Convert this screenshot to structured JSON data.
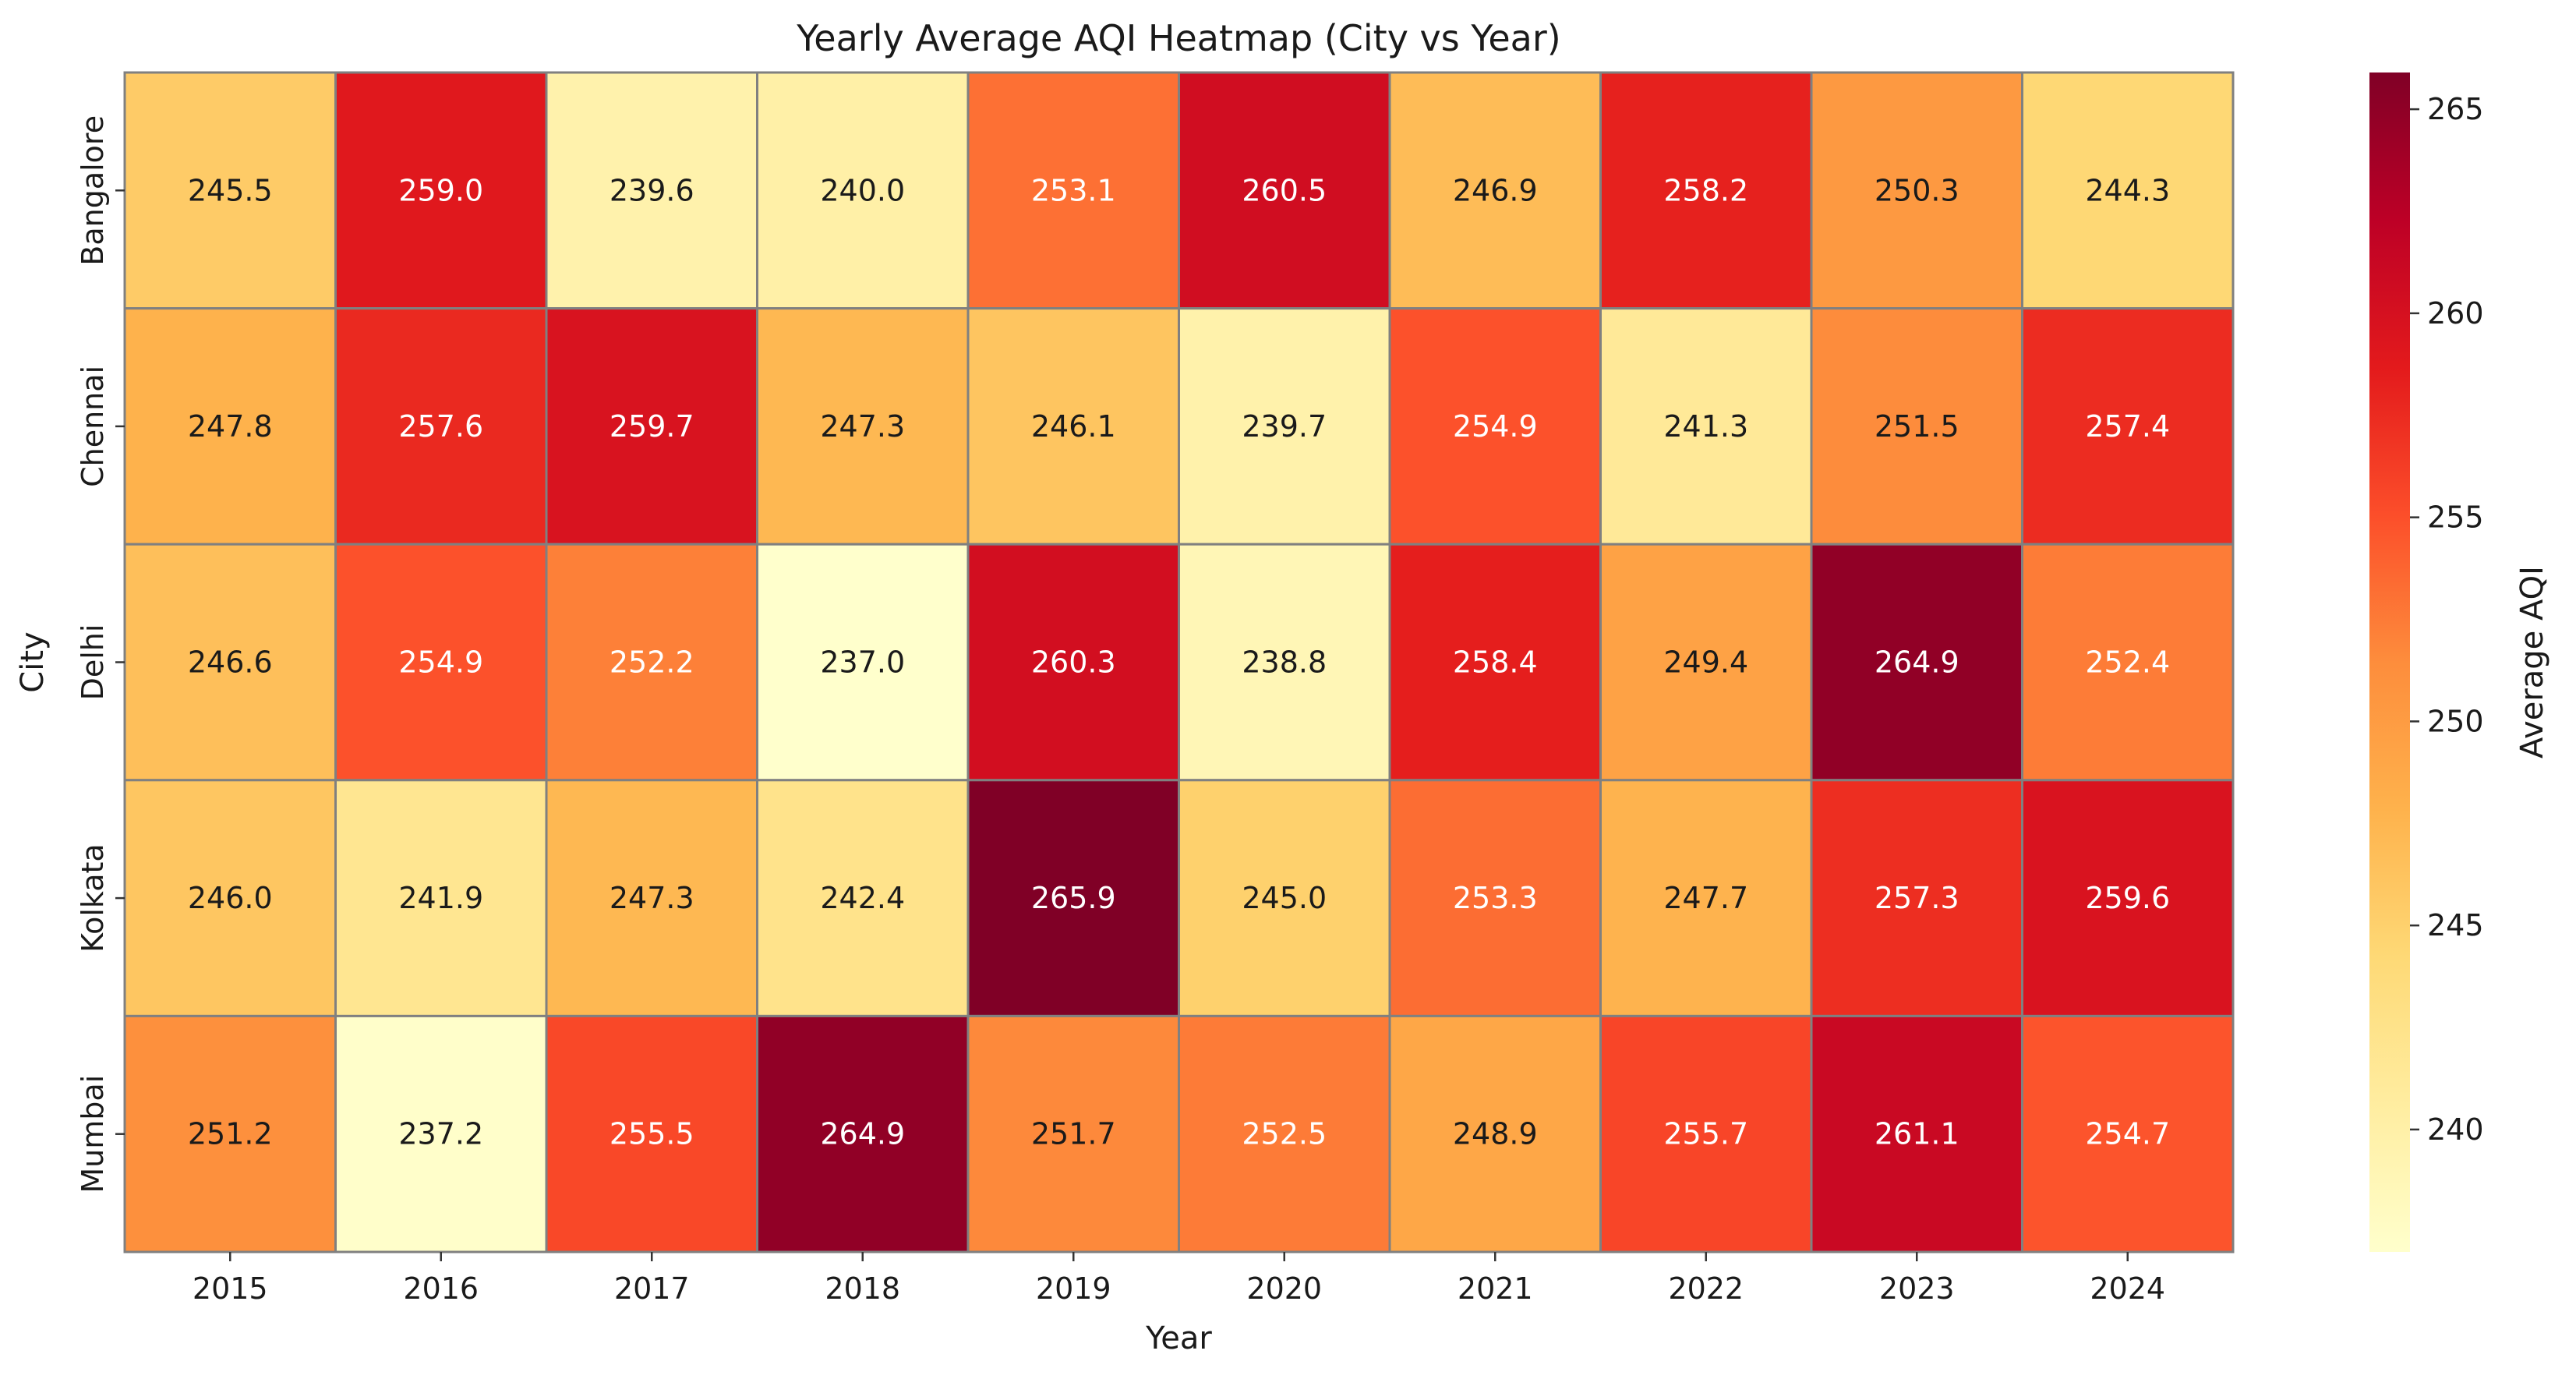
{
  "chart_data": {
    "type": "heatmap",
    "title": "Yearly Average AQI Heatmap (City vs Year)",
    "xlabel": "Year",
    "ylabel": "City",
    "x": [
      "2015",
      "2016",
      "2017",
      "2018",
      "2019",
      "2020",
      "2021",
      "2022",
      "2023",
      "2024"
    ],
    "y": [
      "Bangalore",
      "Chennai",
      "Delhi",
      "Kolkata",
      "Mumbai"
    ],
    "values": [
      [
        245.5,
        259.0,
        239.6,
        240.0,
        253.1,
        260.5,
        246.9,
        258.2,
        250.3,
        244.3
      ],
      [
        247.8,
        257.6,
        259.7,
        247.3,
        246.1,
        239.7,
        254.9,
        241.3,
        251.5,
        257.4
      ],
      [
        246.6,
        254.9,
        252.2,
        237.0,
        260.3,
        238.8,
        258.4,
        249.4,
        264.9,
        252.4
      ],
      [
        246.0,
        241.9,
        247.3,
        242.4,
        265.9,
        245.0,
        253.3,
        247.7,
        257.3,
        259.6
      ],
      [
        251.2,
        237.2,
        255.5,
        264.9,
        251.7,
        252.5,
        248.9,
        255.7,
        261.1,
        254.7
      ]
    ],
    "value_format": "0.0",
    "colorbar": {
      "label": "Average AQI",
      "range": [
        237.0,
        265.9
      ],
      "ticks": [
        240,
        245,
        250,
        255,
        260,
        265
      ]
    },
    "colormap": "YlOrRd",
    "colormap_stops": [
      "#ffffcc",
      "#ffeda0",
      "#fed976",
      "#feb24c",
      "#fd8d3c",
      "#fc4e2a",
      "#e31a1c",
      "#bd0026",
      "#800026"
    ],
    "cell_border_color": "#808080",
    "grid": false
  }
}
